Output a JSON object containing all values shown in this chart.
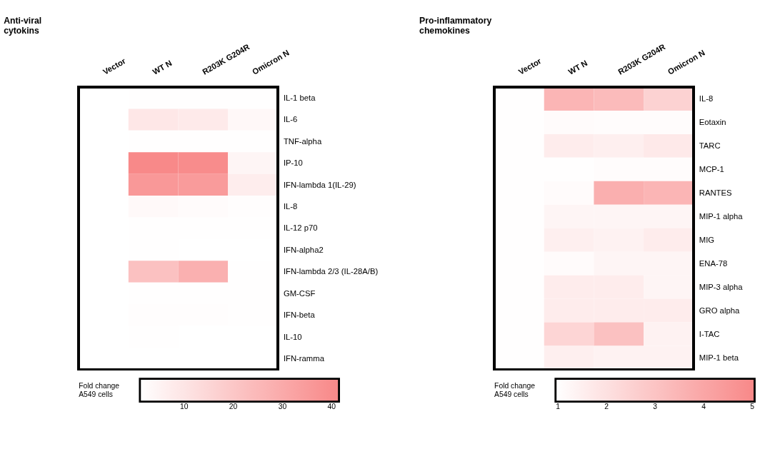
{
  "chart_data": [
    {
      "type": "heatmap",
      "title": [
        "Anti-viral",
        "cytokins"
      ],
      "categories": [
        "Vector",
        "WT N",
        "R203K G204R",
        "Omicron N"
      ],
      "y_categories": [
        "IL-1 beta",
        "IL-6",
        "TNF-alpha",
        "IP-10",
        "IFN-lambda 1(IL-29)",
        "IL-8",
        "IL-12 p70",
        "IFN-alpha2",
        "IFN-lambda 2/3 (IL-28A/B)",
        "GM-CSF",
        "IFN-beta",
        "IL-10",
        "IFN-ramma"
      ],
      "cells": [
        [
          1,
          1.5,
          1.5,
          1.5
        ],
        [
          1,
          9,
          8,
          3.5
        ],
        [
          1,
          1.5,
          1.2,
          1.2
        ],
        [
          1,
          41,
          40,
          4.5
        ],
        [
          1,
          36,
          35,
          7
        ],
        [
          1,
          3,
          2.5,
          1.8
        ],
        [
          1,
          1.3,
          1.2,
          1.3
        ],
        [
          1,
          1.3,
          1.1,
          1.1
        ],
        [
          1,
          22,
          28,
          1.5
        ],
        [
          1,
          1.4,
          1.4,
          1.4
        ],
        [
          1,
          1.6,
          1.6,
          1.5
        ],
        [
          1,
          1.4,
          1.1,
          1.1
        ],
        [
          1,
          1,
          1,
          1
        ]
      ],
      "colors": [
        "#ffffff",
        "#f88888"
      ],
      "clim": [
        1,
        41.5
      ],
      "cticks": [
        10,
        20,
        30,
        40
      ],
      "legend_title": [
        "Fold change",
        "A549 cells"
      ]
    },
    {
      "type": "heatmap",
      "title": [
        "Pro-inflammatory",
        "chemokines"
      ],
      "categories": [
        "Vector",
        "WT N",
        "R203K G204R",
        "Omicron N"
      ],
      "y_categories": [
        "IL-8",
        "Eotaxin",
        "TARC",
        "MCP-1",
        "RANTES",
        "MIP-1 alpha",
        "MIG",
        "ENA-78",
        "MIP-3 alpha",
        "GRO alpha",
        "I-TAC",
        "MIP-1 beta"
      ],
      "cells": [
        [
          1,
          3.5,
          3.3,
          2.5
        ],
        [
          1,
          1.1,
          1.05,
          1.05
        ],
        [
          1,
          1.6,
          1.5,
          1.7
        ],
        [
          1,
          1,
          1.05,
          1.05
        ],
        [
          1,
          1.1,
          3.7,
          3.5
        ],
        [
          1,
          1.3,
          1.3,
          1.3
        ],
        [
          1,
          1.5,
          1.4,
          1.6
        ],
        [
          1,
          1.1,
          1.3,
          1.3
        ],
        [
          1,
          1.6,
          1.6,
          1.3
        ],
        [
          1,
          1.6,
          1.6,
          1.6
        ],
        [
          1,
          2.4,
          3.1,
          1.4
        ],
        [
          1,
          1.5,
          1.4,
          1.4
        ]
      ],
      "colors": [
        "#ffffff",
        "#f88888"
      ],
      "clim": [
        0.95,
        5.05
      ],
      "cticks": [
        1,
        2,
        3,
        4,
        5
      ],
      "legend_title": [
        "Fold change",
        "A549 cells"
      ]
    }
  ]
}
